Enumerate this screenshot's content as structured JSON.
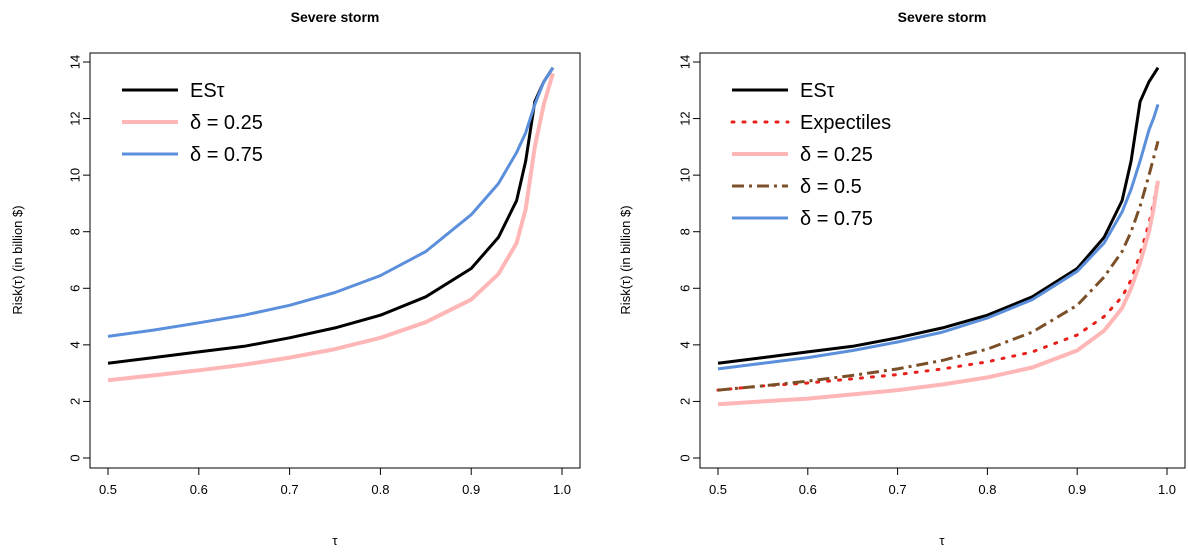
{
  "chart_data": [
    {
      "type": "line",
      "title": "Severe storm",
      "xlabel": "τ",
      "ylabel": "Risk(τ) (in billion $)",
      "xlim": [
        0.5,
        1.0
      ],
      "ylim": [
        0,
        14
      ],
      "xticks": [
        "0.5",
        "0.6",
        "0.7",
        "0.8",
        "0.9",
        "1.0"
      ],
      "yticks": [
        "0",
        "2",
        "4",
        "6",
        "8",
        "10",
        "12",
        "14"
      ],
      "grid": false,
      "legend_position": "top-left",
      "series": [
        {
          "name": "ESτ",
          "color": "#000000",
          "style": "solid",
          "width": 3,
          "x": [
            0.5,
            0.55,
            0.6,
            0.65,
            0.7,
            0.75,
            0.8,
            0.85,
            0.9,
            0.93,
            0.95,
            0.96,
            0.97,
            0.98,
            0.99
          ],
          "y": [
            3.35,
            3.55,
            3.75,
            3.95,
            4.25,
            4.6,
            5.05,
            5.7,
            6.7,
            7.8,
            9.1,
            10.5,
            12.6,
            13.3,
            13.8
          ]
        },
        {
          "name": "δ = 0.25",
          "color": "#ffb6b6",
          "style": "solid",
          "width": 4,
          "x": [
            0.5,
            0.55,
            0.6,
            0.65,
            0.7,
            0.75,
            0.8,
            0.85,
            0.9,
            0.93,
            0.95,
            0.96,
            0.97,
            0.98,
            0.99
          ],
          "y": [
            2.75,
            2.92,
            3.1,
            3.3,
            3.55,
            3.85,
            4.25,
            4.8,
            5.6,
            6.5,
            7.6,
            8.8,
            11.0,
            12.5,
            13.6
          ]
        },
        {
          "name": "δ = 0.75",
          "color": "#5b8fdb",
          "style": "solid",
          "width": 3,
          "x": [
            0.5,
            0.55,
            0.6,
            0.65,
            0.7,
            0.75,
            0.8,
            0.85,
            0.9,
            0.93,
            0.95,
            0.96,
            0.97,
            0.98,
            0.99
          ],
          "y": [
            4.3,
            4.52,
            4.78,
            5.05,
            5.4,
            5.85,
            6.45,
            7.3,
            8.6,
            9.7,
            10.8,
            11.5,
            12.5,
            13.3,
            13.8
          ]
        }
      ]
    },
    {
      "type": "line",
      "title": "Severe storm",
      "xlabel": "τ",
      "ylabel": "Risk(τ) (in billion $)",
      "xlim": [
        0.5,
        1.0
      ],
      "ylim": [
        0,
        14
      ],
      "xticks": [
        "0.5",
        "0.6",
        "0.7",
        "0.8",
        "0.9",
        "1.0"
      ],
      "yticks": [
        "0",
        "2",
        "4",
        "6",
        "8",
        "10",
        "12",
        "14"
      ],
      "grid": false,
      "legend_position": "top-left",
      "series": [
        {
          "name": "ESτ",
          "color": "#000000",
          "style": "solid",
          "width": 3,
          "x": [
            0.5,
            0.55,
            0.6,
            0.65,
            0.7,
            0.75,
            0.8,
            0.85,
            0.9,
            0.93,
            0.95,
            0.96,
            0.97,
            0.98,
            0.99
          ],
          "y": [
            3.35,
            3.55,
            3.75,
            3.95,
            4.25,
            4.6,
            5.05,
            5.7,
            6.7,
            7.8,
            9.1,
            10.5,
            12.6,
            13.3,
            13.8
          ]
        },
        {
          "name": "Expectiles",
          "color": "#e8201a",
          "style": "dotted",
          "width": 3,
          "x": [
            0.5,
            0.55,
            0.6,
            0.65,
            0.7,
            0.75,
            0.8,
            0.85,
            0.9,
            0.93,
            0.95,
            0.96,
            0.97,
            0.98,
            0.985,
            0.99
          ],
          "y": [
            2.4,
            2.55,
            2.65,
            2.8,
            2.95,
            3.15,
            3.4,
            3.75,
            4.35,
            5.0,
            5.7,
            6.3,
            7.2,
            8.3,
            9.0,
            9.9
          ]
        },
        {
          "name": "δ = 0.25",
          "color": "#ffb6b6",
          "style": "solid",
          "width": 4,
          "x": [
            0.5,
            0.55,
            0.6,
            0.65,
            0.7,
            0.75,
            0.8,
            0.85,
            0.9,
            0.93,
            0.95,
            0.96,
            0.97,
            0.98,
            0.985,
            0.99
          ],
          "y": [
            1.9,
            2.0,
            2.1,
            2.25,
            2.4,
            2.6,
            2.85,
            3.2,
            3.8,
            4.5,
            5.3,
            6.0,
            6.9,
            8.0,
            8.8,
            9.8
          ]
        },
        {
          "name": "δ = 0.5",
          "color": "#7b5028",
          "style": "dashdot",
          "width": 3,
          "x": [
            0.5,
            0.55,
            0.6,
            0.65,
            0.7,
            0.75,
            0.8,
            0.85,
            0.9,
            0.93,
            0.95,
            0.96,
            0.97,
            0.98,
            0.985,
            0.99
          ],
          "y": [
            2.4,
            2.55,
            2.72,
            2.92,
            3.15,
            3.45,
            3.85,
            4.45,
            5.4,
            6.4,
            7.3,
            8.0,
            8.9,
            10.0,
            10.6,
            11.2
          ]
        },
        {
          "name": "δ = 0.75",
          "color": "#5b8fdb",
          "style": "solid",
          "width": 3,
          "x": [
            0.5,
            0.55,
            0.6,
            0.65,
            0.7,
            0.75,
            0.8,
            0.85,
            0.9,
            0.93,
            0.95,
            0.96,
            0.97,
            0.98,
            0.985,
            0.99
          ],
          "y": [
            3.15,
            3.35,
            3.55,
            3.8,
            4.1,
            4.45,
            4.95,
            5.6,
            6.6,
            7.6,
            8.7,
            9.5,
            10.5,
            11.6,
            12.0,
            12.5
          ]
        }
      ]
    }
  ]
}
